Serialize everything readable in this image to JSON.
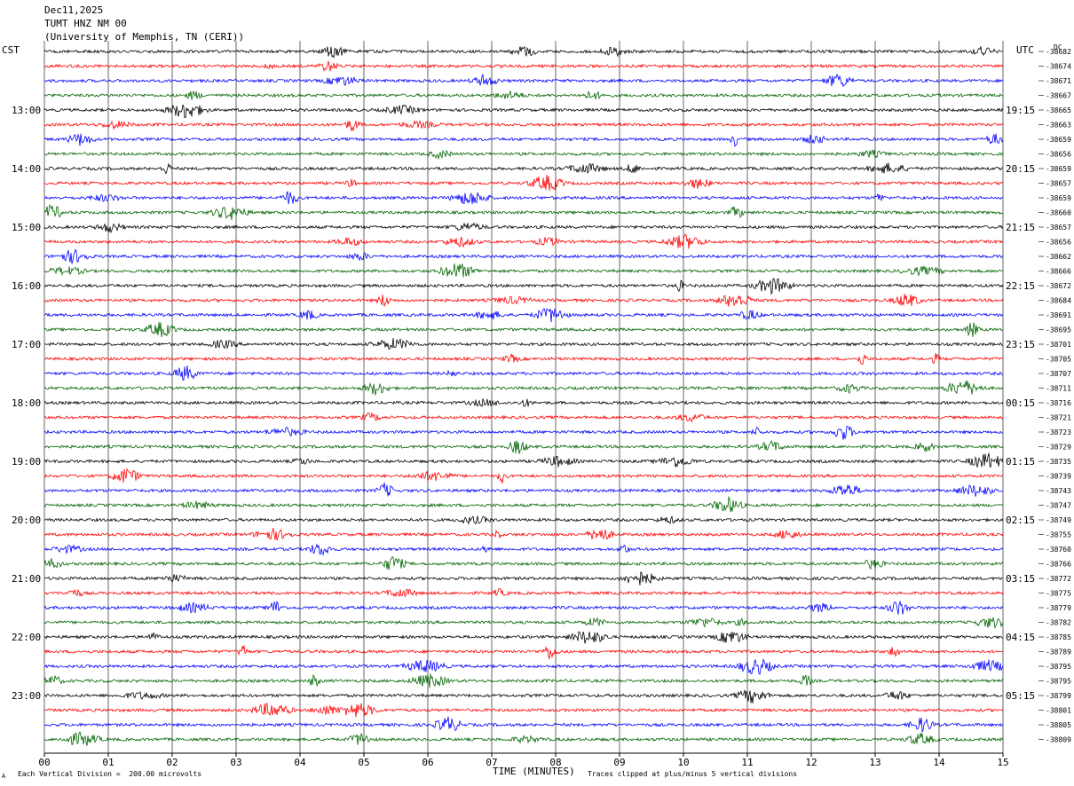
{
  "header": {
    "date": "Dec11,2025",
    "station": "TUMT HNZ NM 00",
    "institution": "(University of Memphis, TN (CERI))"
  },
  "left_tz": "CST",
  "right_tz": "UTC",
  "dc_label": "DC",
  "footer": {
    "scale": "Each Vertical Division =  200.00 microvolts",
    "clip": "Traces clipped at plus/minus 5 vertical divisions",
    "mark": "A"
  },
  "colors": {
    "black": "#000000",
    "red": "#ff0000",
    "blue": "#0000ff",
    "green": "#006400",
    "grid": "#000000"
  },
  "chart_data": {
    "type": "line",
    "title": "",
    "xlabel": "TIME (MINUTES)",
    "ylabel": "",
    "xlim": [
      0,
      15
    ],
    "x_ticks": [
      "00",
      "01",
      "02",
      "03",
      "04",
      "05",
      "06",
      "07",
      "08",
      "09",
      "10",
      "11",
      "12",
      "13",
      "14",
      "15"
    ],
    "left_time_labels": [
      "13:00",
      "14:00",
      "15:00",
      "16:00",
      "17:00",
      "18:00",
      "19:00",
      "20:00",
      "21:00",
      "22:00",
      "23:00"
    ],
    "right_time_labels": [
      "19:15",
      "20:15",
      "21:15",
      "22:15",
      "23:15",
      "00:15",
      "01:15",
      "02:15",
      "03:15",
      "04:15",
      "05:15"
    ],
    "trace_colors_cycle": [
      "black",
      "red",
      "blue",
      "green"
    ],
    "dc_offsets": [
      "-38682",
      "-38674",
      "-38671",
      "-38667",
      "-38665",
      "-38663",
      "-38659",
      "-38656",
      "-38659",
      "-38657",
      "-38659",
      "-38660",
      "-38657",
      "-38656",
      "-38662",
      "-38666",
      "-38672",
      "-38684",
      "-38691",
      "-38695",
      "-38701",
      "-38705",
      "-38707",
      "-38711",
      "-38716",
      "-38721",
      "-38723",
      "-38729",
      "-38735",
      "-38739",
      "-38743",
      "-38747",
      "-38749",
      "-38755",
      "-38760",
      "-38766",
      "-38772",
      "-38775",
      "-38779",
      "-38782",
      "-38785",
      "-38789",
      "-38795",
      "-38795",
      "-38799",
      "-38801",
      "-38805",
      "-38809"
    ],
    "trace_count": 48
  }
}
